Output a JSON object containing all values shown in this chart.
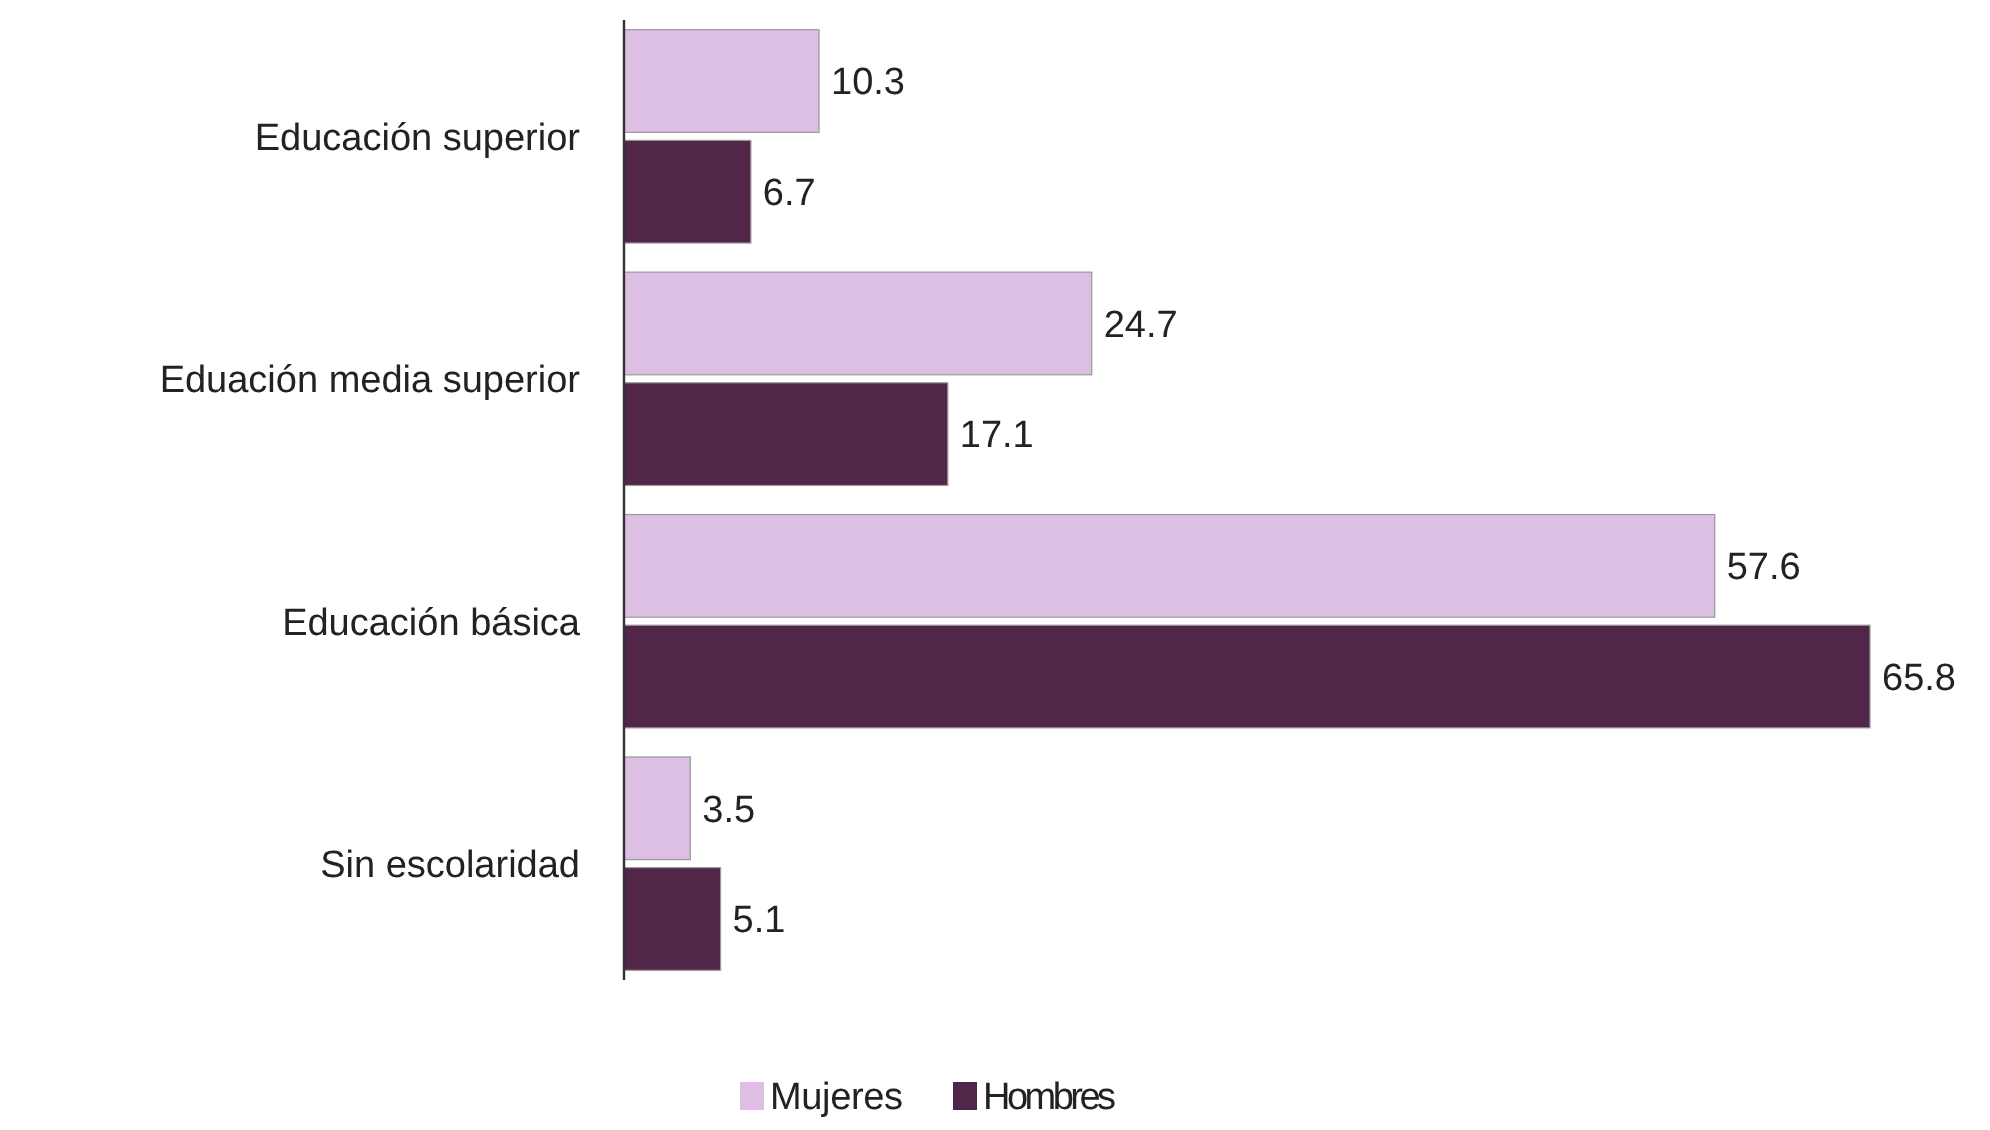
{
  "chart_data": {
    "type": "bar",
    "orientation": "horizontal",
    "categories": [
      "Educación superior",
      "Eduación media superior",
      "Educación básica",
      "Sin escolaridad"
    ],
    "series": [
      {
        "name": "Mujeres",
        "color": "#dcbfe3",
        "values": [
          10.3,
          24.7,
          57.6,
          3.5
        ]
      },
      {
        "name": "Hombres",
        "color": "#522648",
        "values": [
          6.7,
          17.1,
          65.8,
          5.1
        ]
      }
    ],
    "data_labels": true,
    "legend": "bottom"
  }
}
